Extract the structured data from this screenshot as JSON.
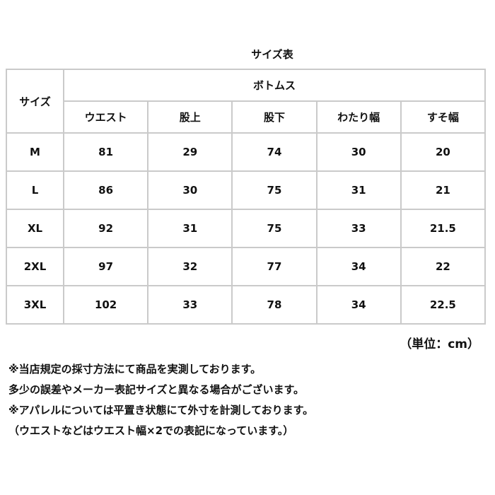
{
  "title": "サイズ表",
  "table": {
    "size_header": "サイズ",
    "group_header": "ボトムス",
    "columns": [
      "ウエスト",
      "股上",
      "股下",
      "わたり幅",
      "すそ幅"
    ],
    "rows": [
      {
        "size": "M",
        "values": [
          "81",
          "29",
          "74",
          "30",
          "20"
        ]
      },
      {
        "size": "L",
        "values": [
          "86",
          "30",
          "75",
          "31",
          "21"
        ]
      },
      {
        "size": "XL",
        "values": [
          "92",
          "31",
          "75",
          "33",
          "21.5"
        ]
      },
      {
        "size": "2XL",
        "values": [
          "97",
          "32",
          "77",
          "34",
          "22"
        ]
      },
      {
        "size": "3XL",
        "values": [
          "102",
          "33",
          "78",
          "34",
          "22.5"
        ]
      }
    ]
  },
  "unit": "（単位：cm）",
  "notes": [
    "※当店規定の採寸方法にて商品を実測しております。",
    "多少の誤差やメーカー表記サイズと異なる場合がございます。",
    "※アパレルについては平置き状態にて外寸を計測しております。",
    "（ウエストなどはウエスト幅×2での表記になっています。）"
  ]
}
